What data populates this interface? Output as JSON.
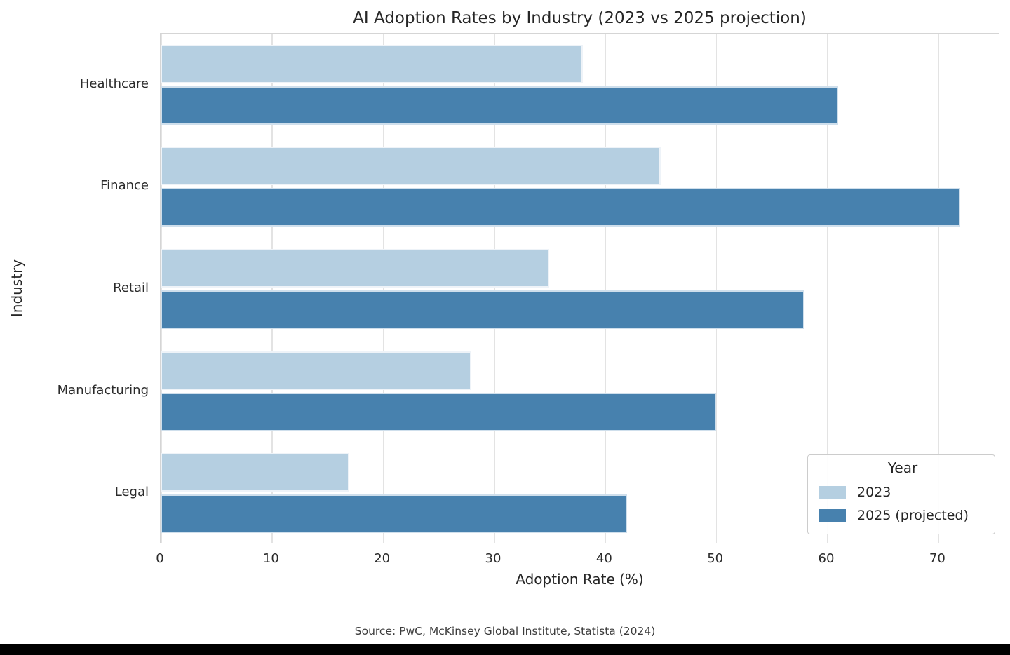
{
  "chart_data": {
    "type": "bar",
    "orientation": "horizontal",
    "title": "AI Adoption Rates by Industry (2023 vs 2025 projection)",
    "xlabel": "Adoption Rate (%)",
    "ylabel": "Industry",
    "categories": [
      "Healthcare",
      "Finance",
      "Retail",
      "Manufacturing",
      "Legal"
    ],
    "series": [
      {
        "name": "2023",
        "color": "#b5cfe1",
        "values": [
          38,
          45,
          35,
          28,
          17
        ]
      },
      {
        "name": "2025 (projected)",
        "color": "#4781ae",
        "values": [
          61,
          72,
          58,
          50,
          42
        ]
      }
    ],
    "xlim": [
      0,
      75.6
    ],
    "xticks": [
      0,
      10,
      20,
      30,
      40,
      50,
      60,
      70
    ],
    "grid": true,
    "gridcolor": "#e3e3e3",
    "legend": {
      "title": "Year",
      "position": "lower right"
    }
  },
  "footer": {
    "source": "Source: PwC, McKinsey Global Institute, Statista (2024)"
  }
}
